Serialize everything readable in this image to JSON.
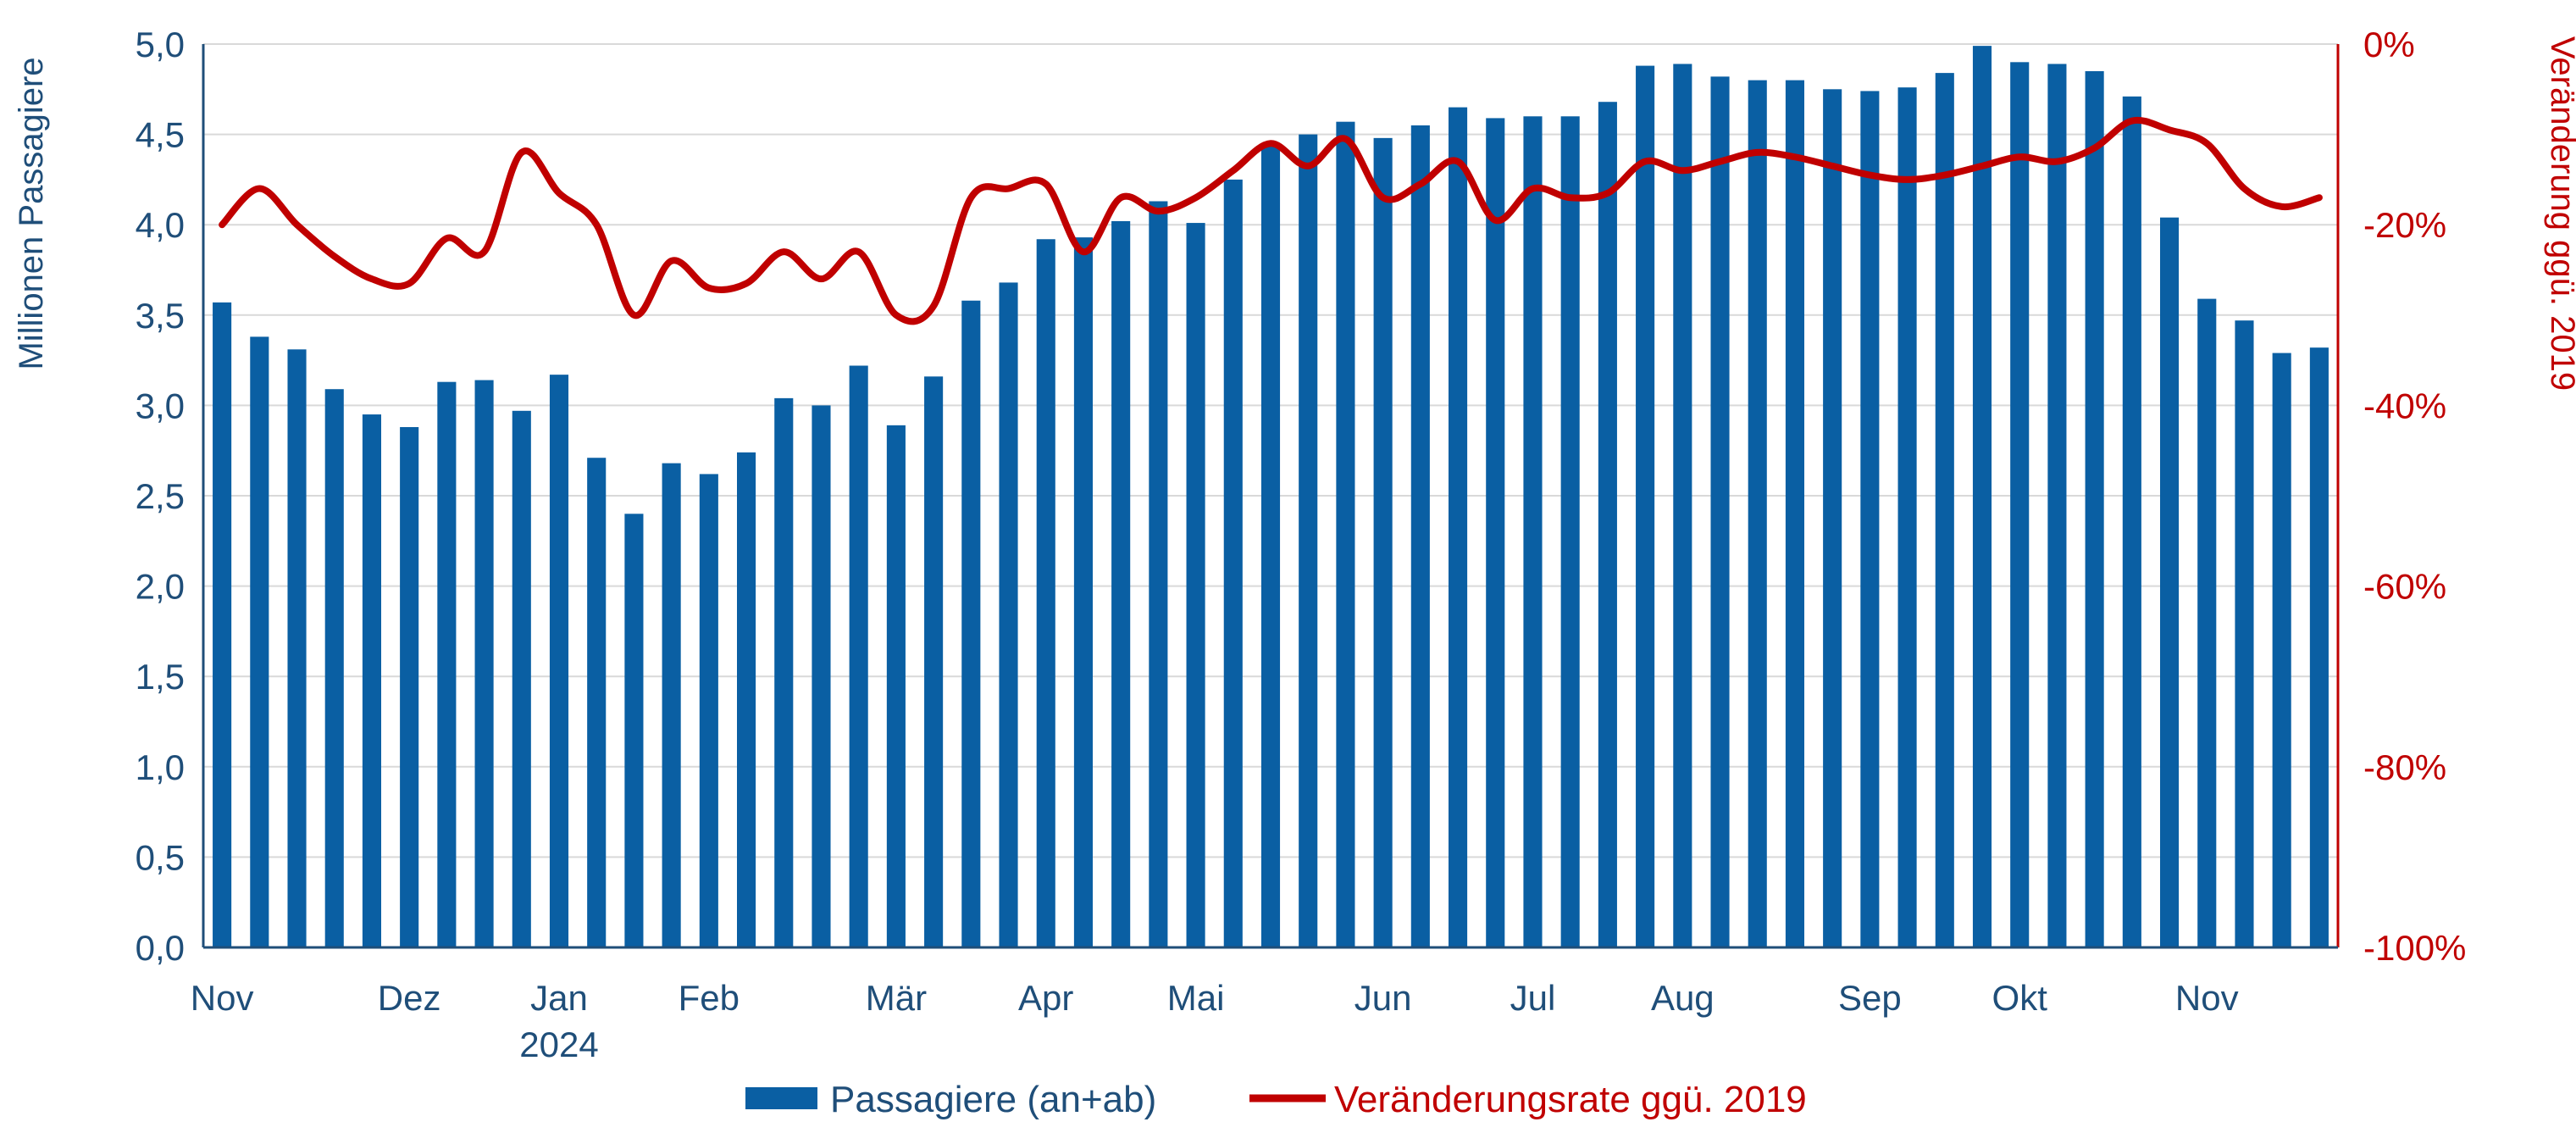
{
  "chart_data": {
    "type": "bar+line",
    "colors": {
      "bars": "#0a5fa3",
      "line": "#c00000",
      "grid": "#d9d9d9",
      "left_axis_text": "#1f4e79",
      "right_axis_text": "#c00000"
    },
    "y_left": {
      "label": "Millionen Passagiere",
      "ylim": [
        0,
        5
      ],
      "ticks": [
        "0,0",
        "0,5",
        "1,0",
        "1,5",
        "2,0",
        "2,5",
        "3,0",
        "3,5",
        "4,0",
        "4,5",
        "5,0"
      ],
      "tick_values": [
        0,
        0.5,
        1,
        1.5,
        2,
        2.5,
        3,
        3.5,
        4,
        4.5,
        5
      ]
    },
    "y_right": {
      "label": "Veränderung ggü. 2019",
      "ylim": [
        -100,
        0
      ],
      "ticks": [
        "-100%",
        "-80%",
        "-60%",
        "-40%",
        "-20%",
        "0%"
      ],
      "tick_values": [
        -100,
        -80,
        -60,
        -40,
        -20,
        0
      ]
    },
    "x_axis": {
      "month_labels": [
        {
          "label": "Nov",
          "week": 0
        },
        {
          "label": "Dez",
          "week": 5
        },
        {
          "label": "Jan",
          "week": 9
        },
        {
          "label": "Feb",
          "week": 13
        },
        {
          "label": "Mär",
          "week": 18
        },
        {
          "label": "Apr",
          "week": 22
        },
        {
          "label": "Mai",
          "week": 26
        },
        {
          "label": "Jun",
          "week": 31
        },
        {
          "label": "Jul",
          "week": 35
        },
        {
          "label": "Aug",
          "week": 39
        },
        {
          "label": "Sep",
          "week": 44
        },
        {
          "label": "Okt",
          "week": 48
        },
        {
          "label": "Nov",
          "week": 53
        }
      ],
      "year_label": {
        "label": "2024",
        "week": 9
      }
    },
    "series": [
      {
        "name": "Passagiere (an+ab)",
        "type": "bar",
        "axis": "left",
        "values": [
          3.57,
          3.38,
          3.31,
          3.09,
          2.95,
          2.88,
          3.13,
          3.14,
          2.97,
          3.17,
          2.71,
          2.4,
          2.68,
          2.62,
          2.74,
          3.04,
          3.0,
          3.22,
          2.89,
          3.16,
          3.58,
          3.68,
          3.92,
          3.93,
          4.02,
          4.13,
          4.01,
          4.25,
          4.45,
          4.5,
          4.57,
          4.48,
          4.55,
          4.65,
          4.59,
          4.6,
          4.6,
          4.68,
          4.88,
          4.89,
          4.82,
          4.8,
          4.8,
          4.75,
          4.74,
          4.76,
          4.84,
          4.99,
          4.9,
          4.89,
          4.85,
          4.71,
          4.04,
          3.59,
          3.47,
          3.29,
          3.32
        ]
      },
      {
        "name": "Veränderungsrate ggü. 2019",
        "type": "line",
        "axis": "right",
        "values": [
          -20,
          -16,
          -20,
          -23.5,
          -26,
          -26.5,
          -21.5,
          -23,
          -12,
          -16.5,
          -20,
          -30,
          -24,
          -27,
          -26.5,
          -23,
          -26,
          -23,
          -30,
          -29,
          -17,
          -16,
          -15.5,
          -23,
          -17,
          -18.5,
          -17,
          -14,
          -11,
          -13.5,
          -10.5,
          -17,
          -15.5,
          -13,
          -19.5,
          -16,
          -17,
          -16.5,
          -13,
          -14,
          -13,
          -12,
          -12.5,
          -13.5,
          -14.5,
          -15,
          -14.5,
          -13.5,
          -12.5,
          -13,
          -11.5,
          -8.5,
          -9.5,
          -11,
          -16,
          -18,
          -17
        ]
      }
    ]
  }
}
